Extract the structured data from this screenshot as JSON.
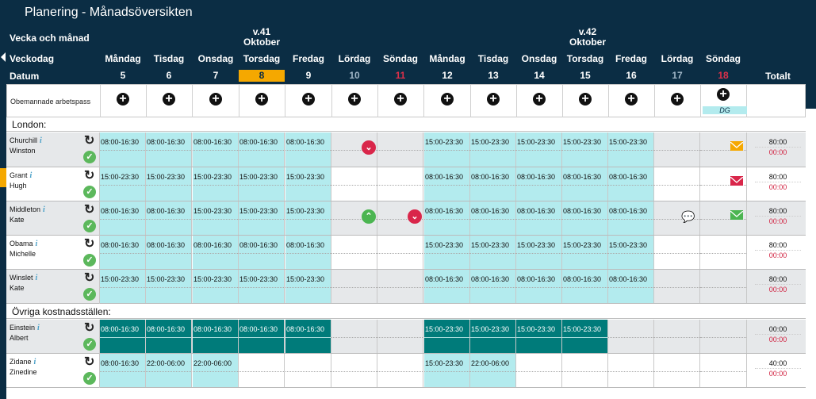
{
  "title": "Planering - Månadsöversikten",
  "header": {
    "row1": "Vecka och månad",
    "row2": "Veckodag",
    "row3": "Datum",
    "total": "Totalt"
  },
  "weeks": [
    {
      "week": "v.41",
      "month": "Oktober"
    },
    {
      "week": "v.42",
      "month": "Oktober"
    }
  ],
  "days": [
    {
      "name": "Måndag",
      "date": "5"
    },
    {
      "name": "Tisdag",
      "date": "6"
    },
    {
      "name": "Onsdag",
      "date": "7"
    },
    {
      "name": "Torsdag",
      "date": "8"
    },
    {
      "name": "Fredag",
      "date": "9"
    },
    {
      "name": "Lördag",
      "date": "10"
    },
    {
      "name": "Söndag",
      "date": "11"
    },
    {
      "name": "Måndag",
      "date": "12"
    },
    {
      "name": "Tisdag",
      "date": "13"
    },
    {
      "name": "Onsdag",
      "date": "14"
    },
    {
      "name": "Torsdag",
      "date": "15"
    },
    {
      "name": "Fredag",
      "date": "16"
    },
    {
      "name": "Lördag",
      "date": "17"
    },
    {
      "name": "Söndag",
      "date": "18"
    }
  ],
  "unassigned": {
    "label": "Obemannade arbetspass",
    "badge": "DG"
  },
  "sections": [
    "London:",
    "Övriga kostnadsställen:"
  ],
  "employees": [
    {
      "last": "Churchill",
      "first": "Winston",
      "total": "80:00",
      "diff": "00:00",
      "shifts": [
        "08:00-16:30",
        "08:00-16:30",
        "08:00-16:30",
        "08:00-16:30",
        "08:00-16:30",
        "",
        "",
        "15:00-23:30",
        "15:00-23:30",
        "15:00-23:30",
        "15:00-23:30",
        "15:00-23:30",
        "",
        ""
      ]
    },
    {
      "last": "Grant",
      "first": "Hugh",
      "total": "80:00",
      "diff": "00:00",
      "shifts": [
        "15:00-23:30",
        "15:00-23:30",
        "15:00-23:30",
        "15:00-23:30",
        "15:00-23:30",
        "",
        "",
        "08:00-16:30",
        "08:00-16:30",
        "08:00-16:30",
        "08:00-16:30",
        "08:00-16:30",
        "",
        ""
      ]
    },
    {
      "last": "Middleton",
      "first": "Kate",
      "total": "80:00",
      "diff": "00:00",
      "shifts": [
        "08:00-16:30",
        "08:00-16:30",
        "15:00-23:30",
        "15:00-23:30",
        "15:00-23:30",
        "",
        "",
        "08:00-16:30",
        "08:00-16:30",
        "08:00-16:30",
        "08:00-16:30",
        "08:00-16:30",
        "",
        ""
      ]
    },
    {
      "last": "Obama",
      "first": "Michelle",
      "total": "80:00",
      "diff": "00:00",
      "shifts": [
        "08:00-16:30",
        "08:00-16:30",
        "08:00-16:30",
        "08:00-16:30",
        "08:00-16:30",
        "",
        "",
        "15:00-23:30",
        "15:00-23:30",
        "15:00-23:30",
        "15:00-23:30",
        "15:00-23:30",
        "",
        ""
      ]
    },
    {
      "last": "Winslet",
      "first": "Kate",
      "total": "80:00",
      "diff": "00:00",
      "shifts": [
        "15:00-23:30",
        "15:00-23:30",
        "15:00-23:30",
        "15:00-23:30",
        "15:00-23:30",
        "",
        "",
        "08:00-16:30",
        "08:00-16:30",
        "08:00-16:30",
        "08:00-16:30",
        "08:00-16:30",
        "",
        ""
      ]
    },
    {
      "last": "Einstein",
      "first": "Albert",
      "total": "00:00",
      "diff": "00:00",
      "shifts": [
        "08:00-16:30",
        "08:00-16:30",
        "08:00-16:30",
        "08:00-16:30",
        "08:00-16:30",
        "",
        "",
        "15:00-23:30",
        "15:00-23:30",
        "15:00-23:30",
        "15:00-23:30",
        "",
        "",
        ""
      ]
    },
    {
      "last": "Zidane",
      "first": "Zinedine",
      "total": "40:00",
      "diff": "00:00",
      "shifts": [
        "08:00-16:30",
        "22:00-06:00",
        "22:00-06:00",
        "",
        "",
        "",
        "",
        "15:00-23:30",
        "22:00-06:00",
        "",
        "",
        "",
        "",
        ""
      ]
    }
  ],
  "colors": {
    "header_bg": "#0b2d44",
    "shift": "#b3ebee",
    "shift_other": "#007b7a",
    "today": "#f5a800"
  },
  "icons": [
    "plus-circle-icon",
    "reload-icon",
    "check-circle-icon",
    "info-icon",
    "chevron-down-icon",
    "chevron-up-icon",
    "envelope-icon",
    "chat-icon"
  ]
}
